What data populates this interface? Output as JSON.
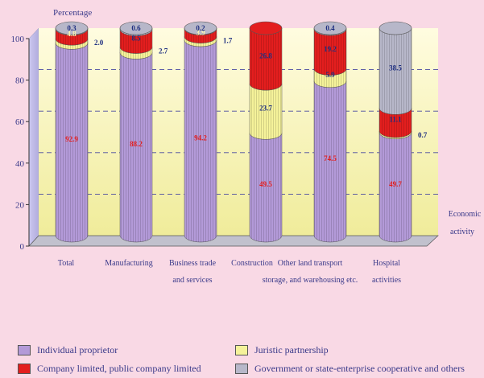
{
  "chart_data": {
    "type": "bar",
    "stacked": true,
    "ylabel": "Percentage",
    "xlabel": "Economic activity",
    "ylim": [
      0,
      100
    ],
    "yticks": [
      0,
      20,
      40,
      60,
      80,
      100
    ],
    "categories": [
      [
        "Total"
      ],
      [
        "Manufacturing"
      ],
      [
        "Business trade",
        "and services"
      ],
      [
        "Construction"
      ],
      [
        "Other land transport",
        "storage, and warehousing etc."
      ],
      [
        "Hospital",
        "activities"
      ]
    ],
    "series": [
      {
        "name": "Individual proprietor",
        "color": "#b39ad8",
        "values": [
          92.9,
          88.2,
          94.2,
          49.5,
          74.5,
          49.7
        ],
        "labels": [
          "92.9",
          "88.2",
          "94.2",
          "49.5",
          "74.5",
          "49.7"
        ]
      },
      {
        "name": "Juristic partnership",
        "color": "#f5f29a",
        "values": [
          2.0,
          2.7,
          1.7,
          23.7,
          5.9,
          0.7
        ],
        "labels": [
          "2.0",
          "2.7",
          "1.7",
          "23.7",
          "5.9",
          "0.7"
        ]
      },
      {
        "name": "Company limited, public company limited",
        "color": "#e31e1e",
        "values": [
          4.8,
          8.5,
          3.9,
          26.8,
          19.2,
          11.1
        ],
        "labels": [
          "4.8",
          "8.5",
          "3.9",
          "26.8",
          "19.2",
          "11.1"
        ]
      },
      {
        "name": "Government or state-enterprise cooperative and others",
        "color": "#b7b7c9",
        "values": [
          0.3,
          0.6,
          0.2,
          0.0,
          0.4,
          38.5
        ],
        "labels": [
          "0.3",
          "0.6",
          "0.2",
          "0.0",
          "0.4",
          "38.5"
        ]
      }
    ],
    "legend_position": "bottom",
    "grid": true
  }
}
